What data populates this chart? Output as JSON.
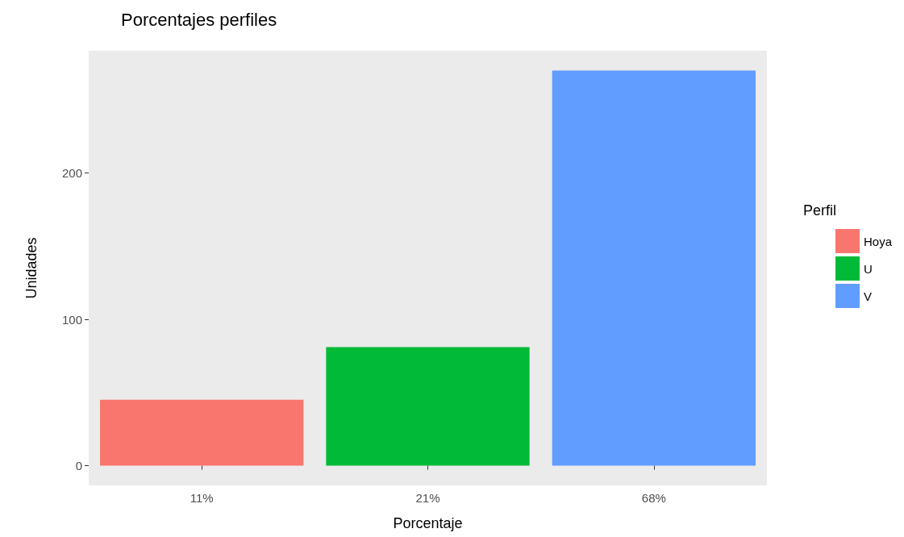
{
  "chart_data": {
    "type": "bar",
    "title": "Porcentajes perfiles",
    "xlabel": "Porcentaje",
    "ylabel": "Unidades",
    "legend_title": "Perfil",
    "categories": [
      "11%",
      "21%",
      "68%"
    ],
    "stacked": true,
    "series": [
      {
        "name": "Hoya",
        "color": "#f8766d",
        "values": [
          45,
          null,
          null
        ]
      },
      {
        "name": "U",
        "color": "#00ba38",
        "values": [
          null,
          81,
          null
        ]
      },
      {
        "name": "V",
        "color": "#619cff",
        "values": [
          null,
          null,
          270
        ]
      }
    ],
    "ylim": [
      -13.5,
      283.5
    ],
    "yticks": [
      0,
      100,
      200
    ],
    "grid": false,
    "legend": "right"
  }
}
